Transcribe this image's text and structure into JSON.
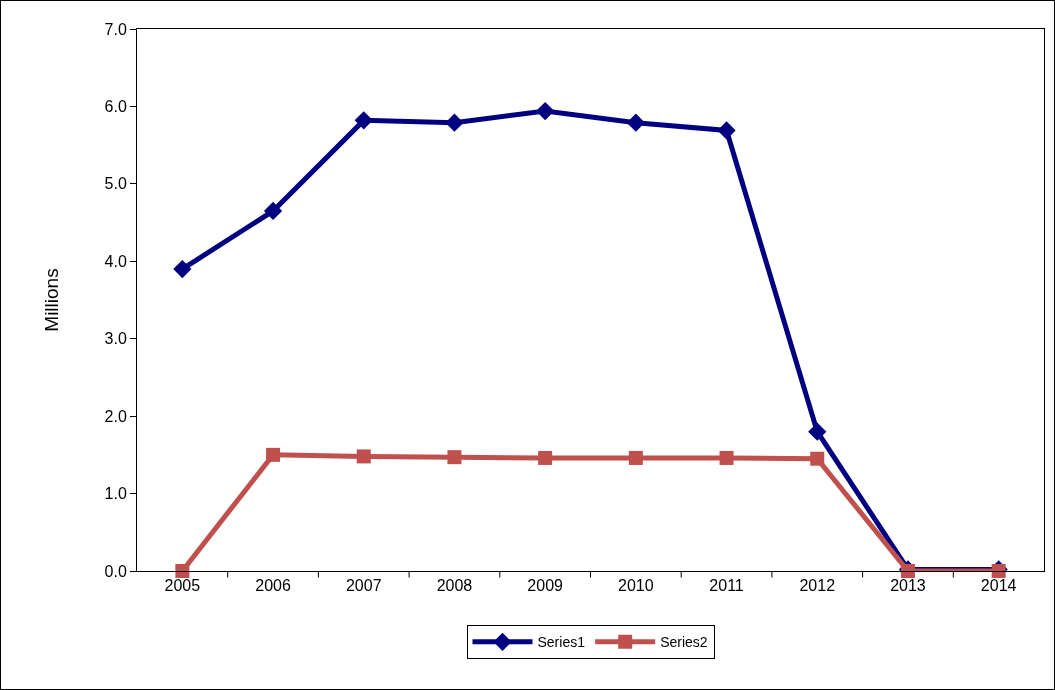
{
  "chart_data": {
    "type": "line",
    "ylabel": "Millions",
    "categories": [
      "2005",
      "2006",
      "2007",
      "2008",
      "2009",
      "2010",
      "2011",
      "2012",
      "2013",
      "2014"
    ],
    "series": [
      {
        "name": "Series1",
        "color": "#000080",
        "marker": "diamond",
        "values": [
          3.9,
          4.65,
          5.82,
          5.79,
          5.94,
          5.79,
          5.69,
          1.8,
          0.02,
          0.02
        ]
      },
      {
        "name": "Series2",
        "color": "#c0504d",
        "marker": "square",
        "values": [
          0,
          1.5,
          1.48,
          1.47,
          1.46,
          1.46,
          1.46,
          1.45,
          0,
          0
        ]
      }
    ],
    "ylim": [
      0,
      7
    ],
    "yticks": [
      {
        "value": 0,
        "label": "0.0"
      },
      {
        "value": 1,
        "label": "1.0"
      },
      {
        "value": 2,
        "label": "2.0"
      },
      {
        "value": 3,
        "label": "3.0"
      },
      {
        "value": 4,
        "label": "4.0"
      },
      {
        "value": 5,
        "label": "5.0"
      },
      {
        "value": 6,
        "label": "6.0"
      },
      {
        "value": 7,
        "label": "7.0"
      }
    ],
    "grid": false,
    "legend": "bottom",
    "line_style": "solid"
  }
}
